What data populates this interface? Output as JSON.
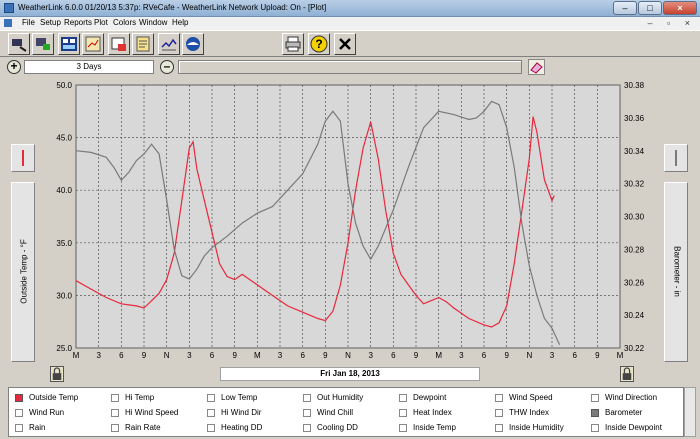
{
  "window": {
    "title": "WeatherLink 6.0.0  01/20/13   5:37p: RVeCafe - WeatherLink Network Upload: On - [Plot]",
    "min": "–",
    "max": "□",
    "close": "×"
  },
  "menu": [
    "File",
    "Setup",
    "Reports",
    "Plot",
    "Colors",
    "Window",
    "Help"
  ],
  "mdi_controls": "– ▫ ×",
  "zoom": {
    "range": "3 Days",
    "zoom_in": "+",
    "zoom_out": "–"
  },
  "left_axis": {
    "label": "Outside Temp - °F",
    "ticks": [
      "50.0",
      "45.0",
      "40.0",
      "35.0",
      "30.0",
      "25.0"
    ]
  },
  "right_axis": {
    "label": "Barometer - in",
    "ticks": [
      "30.38",
      "30.36",
      "30.34",
      "30.32",
      "30.30",
      "30.28",
      "30.26",
      "30.24",
      "30.22"
    ]
  },
  "x_ticks": [
    "M",
    "3",
    "6",
    "9",
    "N",
    "3",
    "6",
    "9",
    "M",
    "3",
    "6",
    "9",
    "N",
    "3",
    "6",
    "9",
    "M",
    "3",
    "6",
    "9",
    "N",
    "3",
    "6",
    "9",
    "M"
  ],
  "date_label": "Fri Jan 18, 2013",
  "colors": {
    "temp": "#e8283c",
    "baro": "#7a7a7a",
    "plot_bg": "#d8d8d8"
  },
  "legend": [
    [
      "Outside Temp",
      "Hi Temp",
      "Low Temp",
      "Out Humidity",
      "Dewpoint",
      "Wind Speed",
      "Wind Direction"
    ],
    [
      "Wind Run",
      "Hi Wind Speed",
      "Hi Wind Dir",
      "Wind Chill",
      "Heat Index",
      "THW Index",
      "Barometer"
    ],
    [
      "Rain",
      "Rain Rate",
      "Heating DD",
      "Cooling DD",
      "Inside Temp",
      "Inside Humidity",
      "Inside Dewpoint"
    ]
  ],
  "legend_checked": {
    "Outside Temp": "#e8283c",
    "Barometer": "#7a7a7a"
  },
  "chart_data": {
    "type": "line",
    "x_hours": [
      0,
      3,
      6,
      9,
      12,
      15,
      18,
      21,
      24,
      27,
      30,
      33,
      36,
      39,
      42,
      45,
      48,
      51,
      54,
      57,
      60,
      63,
      66,
      69,
      72
    ],
    "series": [
      {
        "name": "Outside Temp",
        "axis": "left",
        "points": [
          [
            0,
            31.4
          ],
          [
            2,
            30.6
          ],
          [
            4,
            29.8
          ],
          [
            6,
            29.2
          ],
          [
            8,
            29.0
          ],
          [
            9,
            28.8
          ],
          [
            10,
            29.5
          ],
          [
            11,
            30.2
          ],
          [
            12,
            31.5
          ],
          [
            13,
            34
          ],
          [
            14,
            39
          ],
          [
            15,
            44
          ],
          [
            15.5,
            44.6
          ],
          [
            16,
            42
          ],
          [
            17,
            39
          ],
          [
            18,
            36
          ],
          [
            19,
            33
          ],
          [
            20,
            31.8
          ],
          [
            21,
            31.5
          ],
          [
            22,
            32.0
          ],
          [
            23,
            31.5
          ],
          [
            24,
            31.0
          ],
          [
            26,
            30.0
          ],
          [
            28,
            29.0
          ],
          [
            30,
            28.4
          ],
          [
            32,
            27.8
          ],
          [
            33,
            27.6
          ],
          [
            34,
            28.5
          ],
          [
            35,
            31
          ],
          [
            36,
            35
          ],
          [
            37,
            40
          ],
          [
            38,
            44
          ],
          [
            39,
            46.5
          ],
          [
            40,
            43
          ],
          [
            41,
            38
          ],
          [
            42,
            34
          ],
          [
            43,
            32
          ],
          [
            44,
            31
          ],
          [
            45,
            30
          ],
          [
            46,
            29.2
          ],
          [
            47,
            29.5
          ],
          [
            48,
            29.8
          ],
          [
            49,
            29.4
          ],
          [
            50,
            28.8
          ],
          [
            52,
            27.8
          ],
          [
            54,
            27.2
          ],
          [
            55,
            27.0
          ],
          [
            56,
            27.4
          ],
          [
            57,
            29
          ],
          [
            58,
            33
          ],
          [
            59,
            38
          ],
          [
            60,
            43
          ],
          [
            60.5,
            47
          ],
          [
            61,
            45.5
          ],
          [
            62,
            41
          ],
          [
            63,
            39
          ],
          [
            63.3,
            39.5
          ]
        ]
      },
      {
        "name": "Barometer",
        "axis": "right",
        "points": [
          [
            0,
            30.34
          ],
          [
            2,
            30.339
          ],
          [
            4,
            30.336
          ],
          [
            5,
            30.33
          ],
          [
            6,
            30.322
          ],
          [
            7,
            30.327
          ],
          [
            8,
            30.334
          ],
          [
            9,
            30.338
          ],
          [
            10,
            30.344
          ],
          [
            11,
            30.338
          ],
          [
            12,
            30.31
          ],
          [
            13,
            30.28
          ],
          [
            14,
            30.264
          ],
          [
            15,
            30.262
          ],
          [
            16,
            30.268
          ],
          [
            17,
            30.276
          ],
          [
            18,
            30.281
          ],
          [
            20,
            30.288
          ],
          [
            22,
            30.296
          ],
          [
            24,
            30.302
          ],
          [
            26,
            30.306
          ],
          [
            28,
            30.316
          ],
          [
            30,
            30.326
          ],
          [
            32,
            30.344
          ],
          [
            33,
            30.358
          ],
          [
            34,
            30.364
          ],
          [
            35,
            30.358
          ],
          [
            36,
            30.32
          ],
          [
            37,
            30.296
          ],
          [
            38,
            30.282
          ],
          [
            39,
            30.274
          ],
          [
            40,
            30.282
          ],
          [
            42,
            30.304
          ],
          [
            44,
            30.33
          ],
          [
            46,
            30.354
          ],
          [
            48,
            30.364
          ],
          [
            50,
            30.362
          ],
          [
            52,
            30.359
          ],
          [
            53,
            30.36
          ],
          [
            54,
            30.364
          ],
          [
            55,
            30.37
          ],
          [
            56,
            30.368
          ],
          [
            57,
            30.354
          ],
          [
            58,
            30.33
          ],
          [
            59,
            30.296
          ],
          [
            60,
            30.27
          ],
          [
            61,
            30.252
          ],
          [
            62,
            30.238
          ],
          [
            63,
            30.232
          ],
          [
            64,
            30.222
          ]
        ]
      }
    ],
    "left_ylim": [
      25,
      50
    ],
    "right_ylim": [
      30.22,
      30.38
    ],
    "xlim": [
      0,
      72
    ],
    "grid": true
  }
}
